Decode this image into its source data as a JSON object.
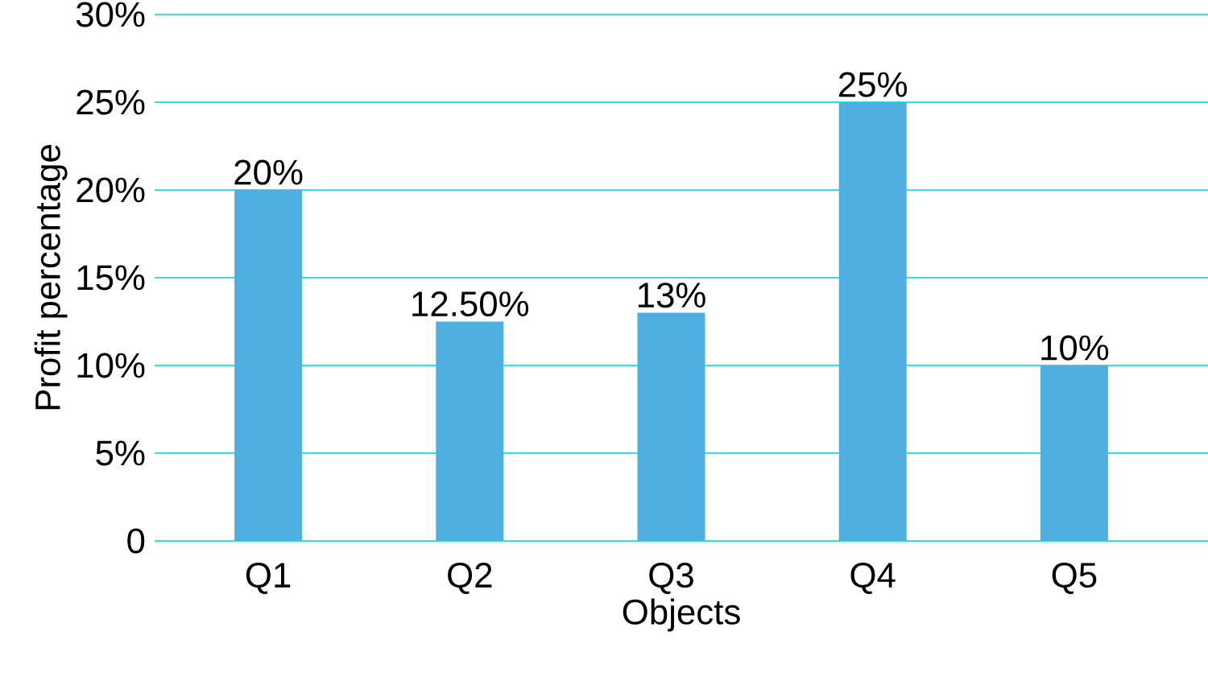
{
  "chart_data": {
    "type": "bar",
    "xlabel": "Objects",
    "ylabel": "Profit percentage",
    "categories": [
      "Q1",
      "Q2",
      "Q3",
      "Q4",
      "Q5"
    ],
    "values": [
      20,
      12.5,
      13,
      25,
      10
    ],
    "value_labels": [
      "20%",
      "12.50%",
      "13%",
      "25%",
      "10%"
    ],
    "color": "#50afe1",
    "ylim": [
      0,
      30
    ],
    "yticks": [
      0,
      {
        "value": 5,
        "label": "5%"
      },
      {
        "value": 10,
        "label": "10%"
      },
      {
        "value": 15,
        "label": "15%"
      },
      {
        "value": 20,
        "label": "20%"
      },
      {
        "value": 25,
        "label": "25%"
      },
      {
        "value": 30,
        "label": "30%"
      }
    ],
    "grid": "y"
  }
}
